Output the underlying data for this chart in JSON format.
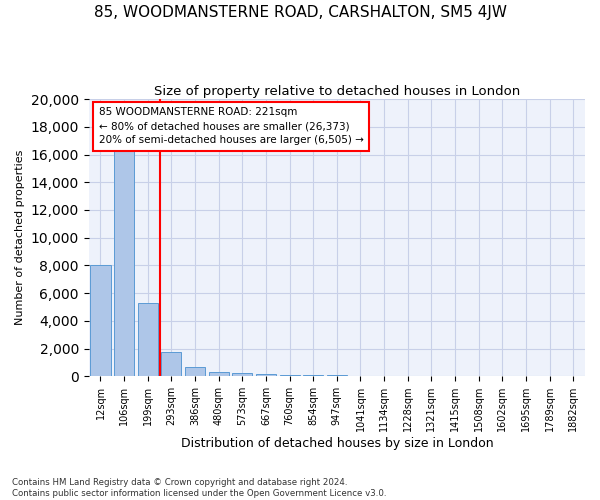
{
  "title1": "85, WOODMANSTERNE ROAD, CARSHALTON, SM5 4JW",
  "title2": "Size of property relative to detached houses in London",
  "xlabel": "Distribution of detached houses by size in London",
  "ylabel": "Number of detached properties",
  "categories": [
    "12sqm",
    "106sqm",
    "199sqm",
    "293sqm",
    "386sqm",
    "480sqm",
    "573sqm",
    "667sqm",
    "760sqm",
    "854sqm",
    "947sqm",
    "1041sqm",
    "1134sqm",
    "1228sqm",
    "1321sqm",
    "1415sqm",
    "1508sqm",
    "1602sqm",
    "1695sqm",
    "1789sqm",
    "1882sqm"
  ],
  "values": [
    8050,
    16800,
    5300,
    1750,
    650,
    330,
    200,
    130,
    95,
    75,
    60,
    45,
    35,
    28,
    22,
    18,
    14,
    11,
    9,
    7,
    6
  ],
  "bar_color": "#aec6e8",
  "bar_edge_color": "#5b9bd5",
  "vline_x_index": 2,
  "vline_color": "red",
  "annotation_text": "85 WOODMANSTERNE ROAD: 221sqm\n← 80% of detached houses are smaller (26,373)\n20% of semi-detached houses are larger (6,505) →",
  "ylim": [
    0,
    20000
  ],
  "yticks": [
    0,
    2000,
    4000,
    6000,
    8000,
    10000,
    12000,
    14000,
    16000,
    18000,
    20000
  ],
  "footer1": "Contains HM Land Registry data © Crown copyright and database right 2024.",
  "footer2": "Contains public sector information licensed under the Open Government Licence v3.0.",
  "bg_color": "#eef2fb",
  "grid_color": "#c8d0e8"
}
